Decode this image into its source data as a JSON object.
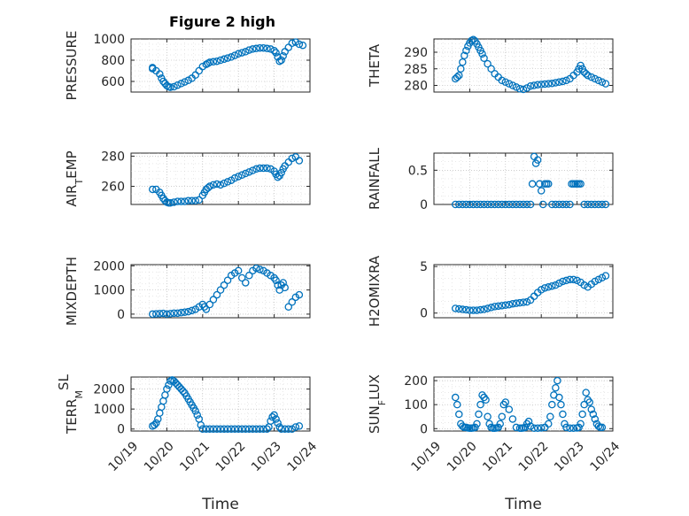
{
  "figure": {
    "title": "Figure 2 high"
  },
  "chart_data": [
    {
      "type": "scatter",
      "id": "pressure",
      "ylabel": "PRESSURE",
      "ylim": [
        500,
        1000
      ],
      "yticks": [
        600,
        800,
        1000
      ],
      "ytick_labels": [
        "600",
        "800",
        "1000"
      ],
      "xlim": [
        0,
        5
      ],
      "xticks": [],
      "xtick_labels": [],
      "xlabel": "",
      "title": "Figure 2 high",
      "grid": "on",
      "x": [
        0.6,
        0.6,
        0.7,
        0.8,
        0.85,
        0.9,
        0.95,
        1.0,
        1.05,
        1.1,
        1.2,
        1.3,
        1.4,
        1.5,
        1.6,
        1.7,
        1.8,
        1.9,
        2.0,
        2.1,
        2.15,
        2.2,
        2.3,
        2.4,
        2.5,
        2.6,
        2.7,
        2.8,
        2.9,
        3.0,
        3.1,
        3.2,
        3.3,
        3.4,
        3.5,
        3.6,
        3.7,
        3.8,
        3.9,
        4.0,
        4.05,
        4.1,
        4.15,
        4.2,
        4.25,
        4.3,
        4.4,
        4.5,
        4.6,
        4.7,
        4.8
      ],
      "y": [
        730,
        720,
        700,
        670,
        630,
        600,
        580,
        560,
        550,
        545,
        550,
        565,
        580,
        595,
        610,
        630,
        660,
        700,
        740,
        760,
        770,
        780,
        785,
        790,
        800,
        810,
        820,
        830,
        845,
        860,
        870,
        880,
        895,
        905,
        910,
        915,
        915,
        910,
        905,
        890,
        870,
        830,
        790,
        800,
        840,
        880,
        920,
        960,
        970,
        950,
        940
      ]
    },
    {
      "type": "scatter",
      "id": "theta",
      "ylabel": "THETA",
      "ylim": [
        278,
        294
      ],
      "yticks": [
        280,
        285,
        290
      ],
      "ytick_labels": [
        "280",
        "285",
        "290"
      ],
      "xlim": [
        0,
        5
      ],
      "xticks": [],
      "xtick_labels": [],
      "xlabel": "",
      "grid": "on",
      "x": [
        0.6,
        0.65,
        0.7,
        0.75,
        0.8,
        0.85,
        0.9,
        0.95,
        1.0,
        1.05,
        1.1,
        1.15,
        1.2,
        1.25,
        1.3,
        1.35,
        1.4,
        1.5,
        1.6,
        1.7,
        1.8,
        1.9,
        2.0,
        2.1,
        2.2,
        2.3,
        2.4,
        2.5,
        2.6,
        2.7,
        2.8,
        2.9,
        3.0,
        3.1,
        3.2,
        3.3,
        3.4,
        3.5,
        3.6,
        3.7,
        3.8,
        3.9,
        4.0,
        4.05,
        4.1,
        4.15,
        4.2,
        4.25,
        4.3,
        4.4,
        4.5,
        4.6,
        4.7,
        4.8
      ],
      "y": [
        282,
        282.5,
        283,
        285,
        287,
        289,
        290.5,
        291.8,
        292.8,
        293.5,
        293.8,
        293.4,
        292.5,
        291.5,
        290.5,
        289.5,
        288.2,
        286.5,
        285,
        283.5,
        282.5,
        281.5,
        281,
        280.5,
        280,
        279.5,
        279,
        278.8,
        279.2,
        279.8,
        280,
        280.2,
        280.3,
        280.4,
        280.5,
        280.6,
        280.8,
        281,
        281.2,
        281.5,
        282,
        283,
        284,
        285,
        286,
        285,
        284,
        283.5,
        283,
        282.5,
        282,
        281.5,
        281,
        280.5
      ]
    },
    {
      "type": "scatter",
      "id": "air_temp",
      "ylabel": "AIR_TEMP",
      "ylim": [
        248,
        282
      ],
      "yticks": [
        260,
        280
      ],
      "ytick_labels": [
        "260",
        "280"
      ],
      "xlim": [
        0,
        5
      ],
      "xticks": [],
      "xtick_labels": [],
      "xlabel": "",
      "grid": "on",
      "x": [
        0.6,
        0.7,
        0.8,
        0.85,
        0.9,
        0.95,
        1.0,
        1.05,
        1.1,
        1.2,
        1.3,
        1.4,
        1.5,
        1.6,
        1.7,
        1.8,
        1.9,
        2.0,
        2.05,
        2.1,
        2.15,
        2.2,
        2.3,
        2.4,
        2.5,
        2.6,
        2.7,
        2.8,
        2.9,
        3.0,
        3.1,
        3.2,
        3.3,
        3.4,
        3.5,
        3.6,
        3.7,
        3.8,
        3.9,
        4.0,
        4.05,
        4.1,
        4.15,
        4.2,
        4.25,
        4.3,
        4.4,
        4.5,
        4.6,
        4.7
      ],
      "y": [
        258,
        258,
        256,
        254,
        252,
        250.5,
        249.5,
        249,
        249,
        249.5,
        250,
        250,
        250,
        250.5,
        250.5,
        250.5,
        251,
        254,
        256,
        258,
        259,
        260,
        261,
        261.5,
        261,
        262,
        263,
        264,
        265.5,
        266.5,
        267.5,
        268.5,
        269.5,
        270.5,
        271.5,
        272,
        272,
        272,
        271.5,
        270,
        268,
        266,
        267,
        269,
        271.5,
        273.5,
        276,
        278.5,
        279.5,
        277
      ]
    },
    {
      "type": "scatter",
      "id": "rainfall",
      "ylabel": "RAINFALL",
      "ylim": [
        0,
        0.75
      ],
      "yticks": [
        0,
        0.5
      ],
      "ytick_labels": [
        "0",
        "0.5"
      ],
      "xlim": [
        0,
        5
      ],
      "xticks": [],
      "xtick_labels": [],
      "xlabel": "",
      "grid": "on",
      "x": [
        0.6,
        0.7,
        0.8,
        0.9,
        1.0,
        1.1,
        1.2,
        1.3,
        1.4,
        1.5,
        1.6,
        1.7,
        1.8,
        1.9,
        2.0,
        2.1,
        2.2,
        2.3,
        2.4,
        2.5,
        2.6,
        2.7,
        2.75,
        2.8,
        2.85,
        2.9,
        2.95,
        3.0,
        3.05,
        3.1,
        3.15,
        3.2,
        3.3,
        3.4,
        3.5,
        3.6,
        3.7,
        3.8,
        3.85,
        3.9,
        3.95,
        4.0,
        4.05,
        4.1,
        4.2,
        4.3,
        4.4,
        4.5,
        4.6,
        4.7,
        4.8
      ],
      "y": [
        0,
        0,
        0,
        0,
        0,
        0,
        0,
        0,
        0,
        0,
        0,
        0,
        0,
        0,
        0,
        0,
        0,
        0,
        0,
        0,
        0,
        0,
        0.3,
        0.7,
        0.6,
        0.65,
        0.3,
        0.2,
        0,
        0.3,
        0.3,
        0.3,
        0,
        0,
        0,
        0,
        0,
        0,
        0.3,
        0.3,
        0.3,
        0.3,
        0.3,
        0.3,
        0,
        0,
        0,
        0,
        0,
        0,
        0
      ]
    },
    {
      "type": "scatter",
      "id": "mixdepth",
      "ylabel": "MIXDEPTH",
      "ylim": [
        -150,
        2050
      ],
      "yticks": [
        0,
        1000,
        2000
      ],
      "ytick_labels": [
        "0",
        "1000",
        "2000"
      ],
      "xlim": [
        0,
        5
      ],
      "xticks": [],
      "xtick_labels": [],
      "xlabel": "",
      "grid": "on",
      "x": [
        0.6,
        0.7,
        0.8,
        0.9,
        1.0,
        1.1,
        1.2,
        1.3,
        1.4,
        1.5,
        1.6,
        1.7,
        1.8,
        1.9,
        2.0,
        2.05,
        2.1,
        2.2,
        2.3,
        2.4,
        2.5,
        2.6,
        2.7,
        2.8,
        2.9,
        3.0,
        3.1,
        3.2,
        3.3,
        3.4,
        3.5,
        3.6,
        3.7,
        3.8,
        3.9,
        4.0,
        4.05,
        4.1,
        4.15,
        4.2,
        4.25,
        4.3,
        4.4,
        4.5,
        4.6,
        4.7
      ],
      "y": [
        0,
        10,
        20,
        30,
        0,
        20,
        40,
        40,
        60,
        80,
        100,
        150,
        200,
        300,
        400,
        300,
        200,
        400,
        600,
        800,
        1000,
        1200,
        1400,
        1600,
        1700,
        1800,
        1500,
        1300,
        1600,
        1800,
        1900,
        1850,
        1800,
        1700,
        1600,
        1500,
        1400,
        1200,
        1000,
        1200,
        1300,
        1100,
        300,
        500,
        700,
        800
      ]
    },
    {
      "type": "scatter",
      "id": "h2omixra",
      "ylabel": "H2OMIXRA",
      "ylim": [
        -0.5,
        5.2
      ],
      "yticks": [
        0,
        5
      ],
      "ytick_labels": [
        "0",
        "5"
      ],
      "xlim": [
        0,
        5
      ],
      "xticks": [],
      "xtick_labels": [],
      "xlabel": "",
      "grid": "on",
      "x": [
        0.6,
        0.7,
        0.8,
        0.9,
        1.0,
        1.1,
        1.2,
        1.3,
        1.4,
        1.5,
        1.6,
        1.7,
        1.8,
        1.9,
        2.0,
        2.1,
        2.2,
        2.3,
        2.4,
        2.5,
        2.6,
        2.7,
        2.8,
        2.9,
        3.0,
        3.1,
        3.2,
        3.3,
        3.4,
        3.5,
        3.6,
        3.7,
        3.8,
        3.9,
        4.0,
        4.1,
        4.2,
        4.3,
        4.4,
        4.5,
        4.6,
        4.7,
        4.8
      ],
      "y": [
        0.5,
        0.45,
        0.4,
        0.35,
        0.3,
        0.3,
        0.3,
        0.35,
        0.4,
        0.5,
        0.6,
        0.7,
        0.75,
        0.8,
        0.85,
        0.9,
        1.0,
        1.05,
        1.1,
        1.15,
        1.2,
        1.4,
        1.8,
        2.2,
        2.5,
        2.7,
        2.8,
        2.9,
        3.0,
        3.2,
        3.4,
        3.5,
        3.6,
        3.6,
        3.5,
        3.3,
        3.0,
        2.8,
        3.1,
        3.4,
        3.6,
        3.8,
        4.0
      ]
    },
    {
      "type": "scatter",
      "id": "terr_msl",
      "ylabel": "TERR_MSL",
      "ylim": [
        -100,
        2600
      ],
      "yticks": [
        0,
        1000,
        2000
      ],
      "ytick_labels": [
        "0",
        "1000",
        "2000"
      ],
      "xlim": [
        0,
        5
      ],
      "xticks": [
        0,
        1,
        2,
        3,
        4,
        5
      ],
      "xtick_labels": [
        "10/19",
        "10/20",
        "10/21",
        "10/22",
        "10/23",
        "10/24"
      ],
      "xlabel": "Time",
      "grid": "on",
      "x": [
        0.6,
        0.65,
        0.7,
        0.75,
        0.8,
        0.85,
        0.9,
        0.95,
        1.0,
        1.05,
        1.1,
        1.15,
        1.2,
        1.25,
        1.3,
        1.35,
        1.4,
        1.45,
        1.5,
        1.55,
        1.6,
        1.65,
        1.7,
        1.75,
        1.8,
        1.85,
        1.9,
        1.95,
        2.0,
        2.1,
        2.2,
        2.3,
        2.4,
        2.5,
        2.6,
        2.7,
        2.8,
        2.9,
        3.0,
        3.1,
        3.2,
        3.3,
        3.4,
        3.5,
        3.6,
        3.7,
        3.8,
        3.85,
        3.9,
        3.95,
        4.0,
        4.05,
        4.1,
        4.15,
        4.2,
        4.3,
        4.4,
        4.5,
        4.6,
        4.7
      ],
      "y": [
        150,
        200,
        300,
        500,
        800,
        1100,
        1400,
        1700,
        2000,
        2200,
        2400,
        2450,
        2400,
        2300,
        2200,
        2100,
        2000,
        1900,
        1800,
        1650,
        1500,
        1350,
        1200,
        1050,
        900,
        700,
        500,
        200,
        0,
        0,
        0,
        0,
        0,
        0,
        0,
        0,
        0,
        0,
        0,
        0,
        0,
        0,
        0,
        0,
        0,
        0,
        0,
        100,
        400,
        600,
        700,
        500,
        300,
        100,
        0,
        0,
        0,
        0,
        100,
        150
      ]
    },
    {
      "type": "scatter",
      "id": "sun_flux",
      "ylabel": "SUN_FLUX",
      "ylim": [
        -10,
        215
      ],
      "yticks": [
        0,
        100,
        200
      ],
      "ytick_labels": [
        "0",
        "100",
        "200"
      ],
      "xlim": [
        0,
        5
      ],
      "xticks": [
        0,
        1,
        2,
        3,
        4,
        5
      ],
      "xtick_labels": [
        "10/19",
        "10/20",
        "10/21",
        "10/22",
        "10/23",
        "10/24"
      ],
      "xlabel": "Time",
      "grid": "on",
      "x": [
        0.6,
        0.65,
        0.7,
        0.75,
        0.8,
        0.85,
        0.9,
        0.95,
        1.0,
        1.05,
        1.1,
        1.15,
        1.2,
        1.25,
        1.3,
        1.35,
        1.4,
        1.45,
        1.5,
        1.55,
        1.6,
        1.65,
        1.7,
        1.75,
        1.8,
        1.85,
        1.9,
        1.95,
        2.0,
        2.1,
        2.2,
        2.3,
        2.4,
        2.45,
        2.5,
        2.55,
        2.6,
        2.65,
        2.7,
        2.8,
        2.9,
        3.0,
        3.1,
        3.2,
        3.25,
        3.3,
        3.35,
        3.4,
        3.45,
        3.5,
        3.55,
        3.6,
        3.65,
        3.7,
        3.8,
        3.9,
        4.0,
        4.05,
        4.1,
        4.15,
        4.2,
        4.25,
        4.3,
        4.35,
        4.4,
        4.45,
        4.5,
        4.55,
        4.6,
        4.65,
        4.7
      ],
      "y": [
        130,
        100,
        60,
        20,
        10,
        5,
        5,
        3,
        2,
        2,
        3,
        5,
        20,
        60,
        100,
        140,
        130,
        120,
        50,
        20,
        5,
        2,
        2,
        3,
        5,
        20,
        50,
        100,
        110,
        80,
        40,
        5,
        2,
        2,
        3,
        5,
        20,
        30,
        10,
        2,
        2,
        3,
        5,
        20,
        50,
        100,
        140,
        170,
        200,
        130,
        100,
        60,
        20,
        5,
        2,
        2,
        3,
        5,
        20,
        60,
        100,
        150,
        120,
        110,
        80,
        60,
        40,
        20,
        10,
        5,
        5
      ]
    }
  ]
}
